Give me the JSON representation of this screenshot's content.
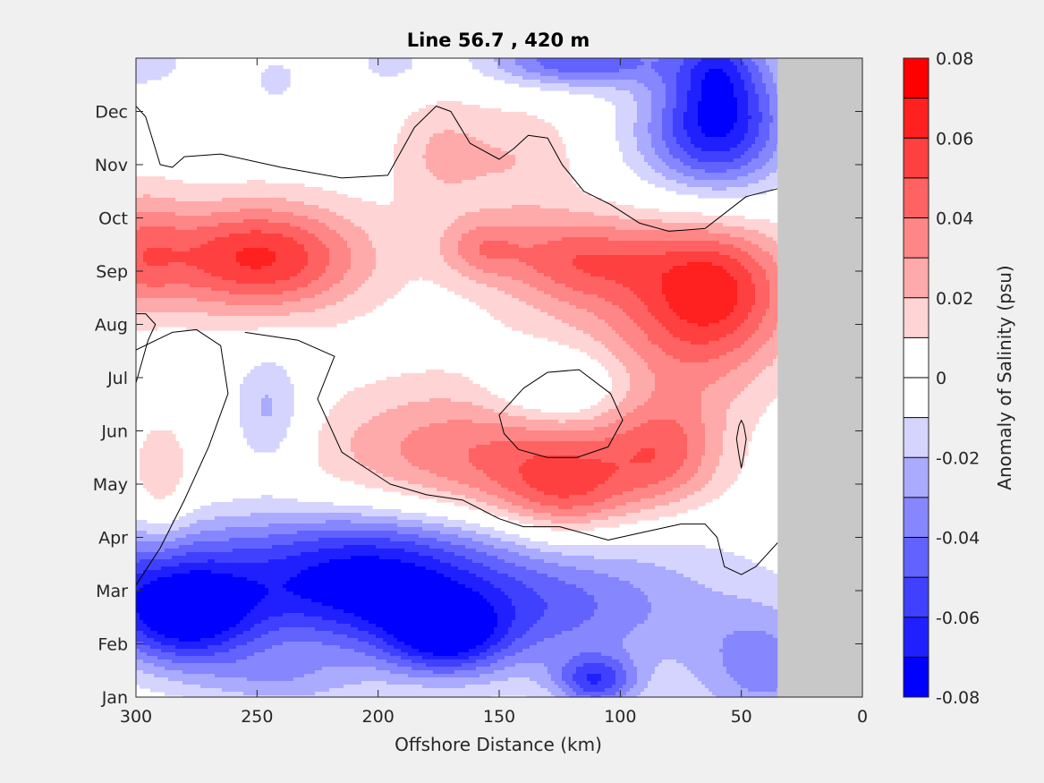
{
  "chart_data": {
    "type": "heatmap",
    "title": "Line 56.7 , 420 m",
    "xlabel": "Offshore Distance (km)",
    "ylabel": "",
    "x_axis": {
      "direction": "reversed",
      "range": [
        300,
        0
      ],
      "ticks": [
        300,
        250,
        200,
        150,
        100,
        50,
        0
      ],
      "tick_labels": [
        "300",
        "250",
        "200",
        "150",
        "100",
        "50",
        "0"
      ]
    },
    "y_axis": {
      "range_months": [
        0,
        12
      ],
      "ticks": [
        0,
        1,
        2,
        3,
        4,
        5,
        6,
        7,
        8,
        9,
        10,
        11
      ],
      "tick_labels": [
        "Jan",
        "Feb",
        "Mar",
        "Apr",
        "May",
        "Jun",
        "Jul",
        "Aug",
        "Sep",
        "Oct",
        "Nov",
        "Dec"
      ]
    },
    "colorbar": {
      "label": "Anomaly of Salinity (psu)",
      "range": [
        -0.08,
        0.08
      ],
      "level_step": 0.01,
      "ticks": [
        0.08,
        0.06,
        0.04,
        0.02,
        0,
        -0.02,
        -0.04,
        -0.06,
        -0.08
      ],
      "tick_labels": [
        "0.08",
        "0.06",
        "0.04",
        "0.02",
        "0",
        "-0.02",
        "-0.04",
        "-0.06",
        "-0.08"
      ],
      "colors_low_to_high": [
        "#0000ff",
        "#2020ff",
        "#4040ff",
        "#6262ff",
        "#8686ff",
        "#aaaaff",
        "#d4d4ff",
        "#ffffff",
        "#ffffff",
        "#ffd4d4",
        "#ffaaaa",
        "#ff8686",
        "#ff6262",
        "#ff4040",
        "#ff2020",
        "#ff0000"
      ]
    },
    "no_data_region": {
      "x_range_km": [
        35,
        0
      ],
      "color": "#c8c8c8"
    },
    "grid": false,
    "features": [
      {
        "sign": "neg",
        "x_km": 300,
        "month": 11.9,
        "rx_km": 14,
        "ry_months": 0.3,
        "amp": -0.02
      },
      {
        "sign": "neg",
        "x_km": 242,
        "month": 11.6,
        "rx_km": 10,
        "ry_months": 0.45,
        "amp": -0.012
      },
      {
        "sign": "neg",
        "x_km": 195,
        "month": 11.9,
        "rx_km": 11,
        "ry_months": 0.35,
        "amp": -0.014
      },
      {
        "sign": "neg",
        "x_km": 118,
        "month": 11.95,
        "rx_km": 26,
        "ry_months": 0.35,
        "amp": -0.05
      },
      {
        "sign": "neg",
        "x_km": 58,
        "month": 11.2,
        "rx_km": 19,
        "ry_months": 1.1,
        "amp": -0.05
      },
      {
        "sign": "neg",
        "x_km": 65,
        "month": 10.5,
        "rx_km": 23,
        "ry_months": 0.7,
        "amp": -0.03
      },
      {
        "sign": "neg",
        "x_km": 60,
        "month": 11.8,
        "rx_km": 10,
        "ry_months": 0.5,
        "amp": -0.018
      },
      {
        "sign": "neg",
        "x_km": 290,
        "month": 5.4,
        "rx_km": 9,
        "ry_months": 1.1,
        "amp": -0.022
      },
      {
        "sign": "neg",
        "x_km": 245,
        "month": 5.35,
        "rx_km": 11,
        "ry_months": 0.8,
        "amp": -0.026
      },
      {
        "sign": "neg",
        "x_km": 126,
        "month": 5.8,
        "rx_km": 20,
        "ry_months": 0.5,
        "amp": -0.028
      },
      {
        "sign": "neg",
        "x_km": 295,
        "month": 2.3,
        "rx_km": 40,
        "ry_months": 0.75,
        "amp": -0.045
      },
      {
        "sign": "neg",
        "x_km": 280,
        "month": 1.4,
        "rx_km": 22,
        "ry_months": 0.65,
        "amp": -0.062
      },
      {
        "sign": "neg",
        "x_km": 208,
        "month": 2.2,
        "rx_km": 35,
        "ry_months": 0.9,
        "amp": -0.058
      },
      {
        "sign": "neg",
        "x_km": 140,
        "month": 1.75,
        "rx_km": 55,
        "ry_months": 0.9,
        "amp": -0.046
      },
      {
        "sign": "neg",
        "x_km": 172,
        "month": 1.1,
        "rx_km": 17,
        "ry_months": 0.5,
        "amp": -0.046
      },
      {
        "sign": "neg",
        "x_km": 110,
        "month": 0.3,
        "rx_km": 12,
        "ry_months": 0.35,
        "amp": -0.05
      },
      {
        "sign": "neg",
        "x_km": 40,
        "month": 0.5,
        "rx_km": 22,
        "ry_months": 0.85,
        "amp": -0.032
      },
      {
        "sign": "neg",
        "x_km": 240,
        "month": 0.3,
        "rx_km": 23,
        "ry_months": 0.4,
        "amp": -0.02
      },
      {
        "sign": "neg",
        "x_km": 150,
        "month": 3.0,
        "rx_km": 75,
        "ry_months": 0.45,
        "amp": -0.008
      },
      {
        "sign": "pos",
        "x_km": 250,
        "month": 8.25,
        "rx_km": 32,
        "ry_months": 0.75,
        "amp": 0.062
      },
      {
        "sign": "pos",
        "x_km": 300,
        "month": 8.3,
        "rx_km": 14,
        "ry_months": 0.9,
        "amp": 0.03
      },
      {
        "sign": "pos",
        "x_km": 118,
        "month": 8.25,
        "rx_km": 26,
        "ry_months": 0.6,
        "amp": 0.04
      },
      {
        "sign": "pos",
        "x_km": 158,
        "month": 8.45,
        "rx_km": 12,
        "ry_months": 0.4,
        "amp": 0.024
      },
      {
        "sign": "pos",
        "x_km": 62,
        "month": 7.7,
        "rx_km": 19,
        "ry_months": 0.9,
        "amp": 0.025
      },
      {
        "sign": "pos",
        "x_km": 60,
        "month": 8.0,
        "rx_km": 26,
        "ry_months": 0.8,
        "amp": 0.022
      },
      {
        "sign": "pos",
        "x_km": 175,
        "month": 10.2,
        "rx_km": 15,
        "ry_months": 0.8,
        "amp": 0.02
      },
      {
        "sign": "pos",
        "x_km": 140,
        "month": 10.1,
        "rx_km": 18,
        "ry_months": 0.8,
        "amp": 0.018
      },
      {
        "sign": "pos",
        "x_km": 80,
        "month": 7.2,
        "rx_km": 45,
        "ry_months": 0.9,
        "amp": 0.02
      },
      {
        "sign": "pos",
        "x_km": 70,
        "month": 6.4,
        "rx_km": 26,
        "ry_months": 0.9,
        "amp": 0.016
      },
      {
        "sign": "pos",
        "x_km": 290,
        "month": 4.6,
        "rx_km": 9,
        "ry_months": 1.2,
        "amp": 0.032
      },
      {
        "sign": "pos",
        "x_km": 165,
        "month": 4.55,
        "rx_km": 45,
        "ry_months": 0.9,
        "amp": 0.026
      },
      {
        "sign": "pos",
        "x_km": 122,
        "month": 3.8,
        "rx_km": 20,
        "ry_months": 0.7,
        "amp": 0.034
      },
      {
        "sign": "pos",
        "x_km": 82,
        "month": 4.6,
        "rx_km": 17,
        "ry_months": 0.75,
        "amp": 0.032
      },
      {
        "sign": "pos",
        "x_km": 142,
        "month": 4.6,
        "rx_km": 55,
        "ry_months": 1.1,
        "amp": 0.014
      }
    ],
    "zero_contours": [
      {
        "closed": false,
        "points": [
          [
            300,
            11.1
          ],
          [
            296,
            10.9
          ],
          [
            290,
            10.0
          ],
          [
            285,
            9.95
          ],
          [
            280,
            10.15
          ],
          [
            265,
            10.2
          ],
          [
            240,
            9.95
          ],
          [
            215,
            9.75
          ],
          [
            196,
            9.8
          ],
          [
            185,
            10.7
          ],
          [
            176,
            11.1
          ],
          [
            170,
            11.0
          ],
          [
            162,
            10.4
          ],
          [
            150,
            10.1
          ],
          [
            144,
            10.3
          ],
          [
            138,
            10.55
          ],
          [
            130,
            10.5
          ],
          [
            124,
            10.0
          ],
          [
            115,
            9.5
          ],
          [
            104,
            9.25
          ],
          [
            92,
            8.9
          ],
          [
            80,
            8.75
          ],
          [
            65,
            8.8
          ],
          [
            48,
            9.4
          ],
          [
            35,
            9.55
          ]
        ]
      },
      {
        "closed": false,
        "points": [
          [
            300,
            5.9
          ],
          [
            295,
            6.7
          ],
          [
            292,
            7.0
          ],
          [
            296,
            7.2
          ],
          [
            300,
            7.2
          ]
        ]
      },
      {
        "closed": false,
        "points": [
          [
            300,
            2.1
          ],
          [
            290,
            2.8
          ],
          [
            280,
            3.7
          ],
          [
            270,
            4.7
          ],
          [
            262,
            5.7
          ],
          [
            265,
            6.6
          ],
          [
            275,
            6.9
          ],
          [
            285,
            6.85
          ],
          [
            310,
            6.3
          ]
        ]
      },
      {
        "closed": false,
        "points": [
          [
            255,
            6.85
          ],
          [
            233,
            6.7
          ],
          [
            218,
            6.4
          ],
          [
            225,
            5.6
          ],
          [
            215,
            4.6
          ],
          [
            195,
            4.0
          ],
          [
            180,
            3.8
          ],
          [
            165,
            3.7
          ],
          [
            150,
            3.35
          ],
          [
            140,
            3.2
          ],
          [
            125,
            3.2
          ],
          [
            105,
            2.95
          ],
          [
            90,
            3.1
          ],
          [
            75,
            3.25
          ],
          [
            65,
            3.25
          ],
          [
            60,
            3.0
          ],
          [
            57,
            2.45
          ],
          [
            50,
            2.3
          ],
          [
            44,
            2.45
          ],
          [
            35,
            2.9
          ]
        ]
      },
      {
        "closed": true,
        "points": [
          [
            150,
            5.3
          ],
          [
            140,
            5.8
          ],
          [
            130,
            6.1
          ],
          [
            117,
            6.15
          ],
          [
            104,
            5.7
          ],
          [
            99,
            5.2
          ],
          [
            105,
            4.7
          ],
          [
            118,
            4.5
          ],
          [
            130,
            4.5
          ],
          [
            142,
            4.65
          ],
          [
            148,
            4.95
          ]
        ]
      },
      {
        "closed": true,
        "points": [
          [
            50,
            4.3
          ],
          [
            49,
            4.55
          ],
          [
            48,
            4.85
          ],
          [
            49,
            5.1
          ],
          [
            50,
            5.2
          ],
          [
            51,
            5.1
          ],
          [
            52,
            4.85
          ],
          [
            51,
            4.55
          ]
        ]
      }
    ]
  }
}
